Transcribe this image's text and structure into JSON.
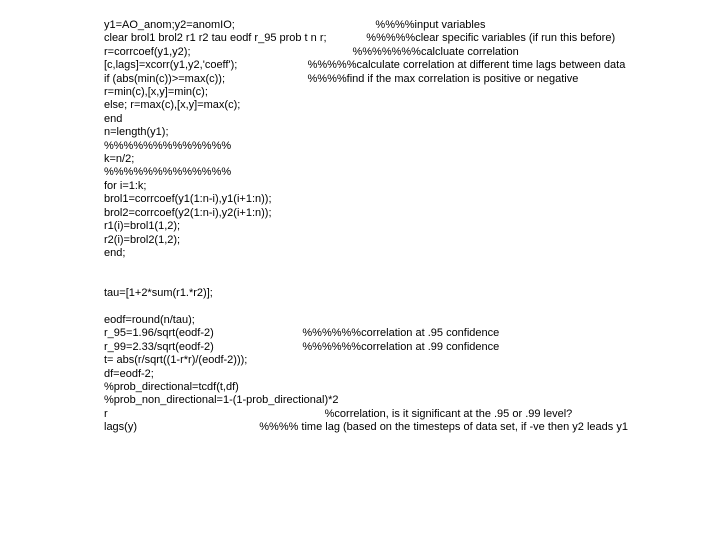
{
  "lines": [
    "y1=AO_anom;y2=anomIO;                                              %%%%input variables",
    "clear brol1 brol2 r1 r2 tau eodf r_95 prob t n r;             %%%%%clear specific variables (if run this before)",
    "r=corrcoef(y1,y2);                                                     %%%%%%%calcluate correlation",
    "[c,lags]=xcorr(y1,y2,'coeff');                       %%%%%calculate correlation at different time lags between data",
    "if (abs(min(c))>=max(c));                           %%%%find if the max correlation is positive or negative",
    "r=min(c),[x,y]=min(c);",
    "else; r=max(c),[x,y]=max(c);",
    "end",
    "n=length(y1);",
    "%%%%%%%%%%%%%",
    "k=n/2;",
    "%%%%%%%%%%%%%",
    "for i=1:k;",
    "brol1=corrcoef(y1(1:n-i),y1(i+1:n));",
    "brol2=corrcoef(y2(1:n-i),y2(i+1:n));",
    "r1(i)=brol1(1,2);",
    "r2(i)=brol2(1,2);",
    "end;",
    "",
    "",
    "tau=[1+2*sum(r1.*r2)];",
    "",
    "eodf=round(n/tau);",
    "r_95=1.96/sqrt(eodf-2)                             %%%%%%correlation at .95 confidence",
    "r_99=2.33/sqrt(eodf-2)                             %%%%%%correlation at .99 confidence",
    "t= abs(r/sqrt((1-r*r)/(eodf-2)));",
    "df=eodf-2;",
    "%prob_directional=tcdf(t,df)",
    "%prob_non_directional=1-(1-prob_directional)*2",
    "r                                                                       %correlation, is it significant at the .95 or .99 level?",
    "lags(y)                                        %%%% time lag (based on the timesteps of data set, if -ve then y2 leads y1"
  ]
}
